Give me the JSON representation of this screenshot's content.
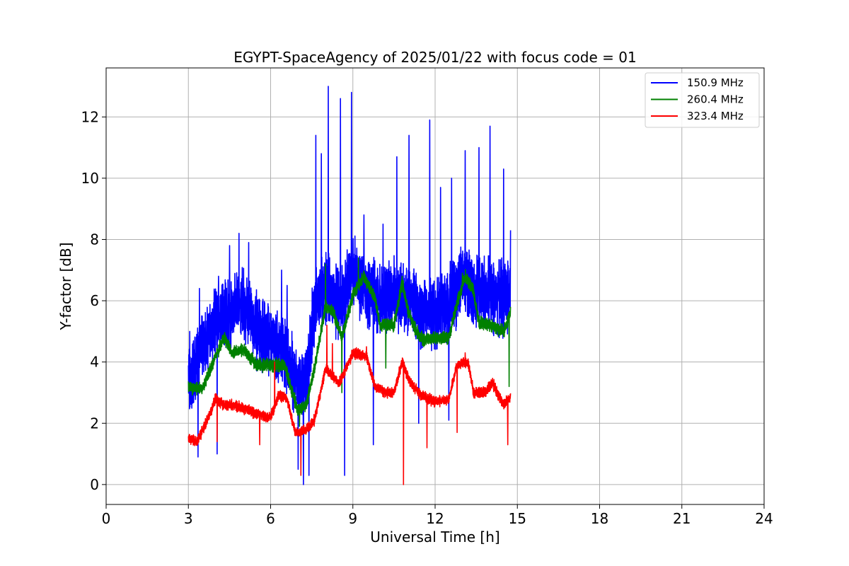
{
  "chart_data": {
    "type": "line",
    "title": "EGYPT-SpaceAgency of 2025/01/22 with focus code = 01",
    "xlabel": "Universal Time [h]",
    "ylabel": "Y-factor [dB]",
    "xlim": [
      0,
      24
    ],
    "ylim": [
      -0.65,
      13.6
    ],
    "xticks": [
      0,
      3,
      6,
      9,
      12,
      15,
      18,
      21,
      24
    ],
    "yticks": [
      0,
      2,
      4,
      6,
      8,
      10,
      12
    ],
    "grid": true,
    "legend_position": "top-right",
    "series": [
      {
        "name": "150.9 MHz",
        "color": "#0000ff",
        "trend": [
          [
            3.0,
            3.3
          ],
          [
            3.5,
            4.5
          ],
          [
            4.0,
            5.3
          ],
          [
            4.5,
            5.6
          ],
          [
            5.0,
            6.0
          ],
          [
            5.5,
            5.0
          ],
          [
            6.0,
            4.8
          ],
          [
            6.5,
            4.3
          ],
          [
            7.0,
            3.2
          ],
          [
            7.3,
            3.4
          ],
          [
            7.6,
            5.8
          ],
          [
            8.0,
            6.5
          ],
          [
            8.5,
            5.8
          ],
          [
            9.0,
            7.0
          ],
          [
            9.5,
            6.4
          ],
          [
            10.0,
            6.0
          ],
          [
            10.5,
            6.2
          ],
          [
            11.0,
            6.0
          ],
          [
            11.5,
            5.6
          ],
          [
            12.0,
            5.5
          ],
          [
            12.5,
            5.9
          ],
          [
            13.0,
            6.8
          ],
          [
            13.5,
            6.3
          ],
          [
            14.0,
            6.2
          ],
          [
            14.5,
            6.1
          ],
          [
            14.75,
            6.2
          ]
        ],
        "spread": 1.6,
        "peaks": [
          [
            3.05,
            5.0
          ],
          [
            3.4,
            6.4
          ],
          [
            4.1,
            6.8
          ],
          [
            4.5,
            7.8
          ],
          [
            4.85,
            8.2
          ],
          [
            5.2,
            7.9
          ],
          [
            6.4,
            7.0
          ],
          [
            6.6,
            6.5
          ],
          [
            7.65,
            11.4
          ],
          [
            7.85,
            10.8
          ],
          [
            8.1,
            13.0
          ],
          [
            8.55,
            12.6
          ],
          [
            8.95,
            12.8
          ],
          [
            9.4,
            8.8
          ],
          [
            10.1,
            8.5
          ],
          [
            10.6,
            10.7
          ],
          [
            11.05,
            11.4
          ],
          [
            11.8,
            11.9
          ],
          [
            12.2,
            9.7
          ],
          [
            12.6,
            10.0
          ],
          [
            13.1,
            10.9
          ],
          [
            13.6,
            11.0
          ],
          [
            14.0,
            11.7
          ],
          [
            14.5,
            10.3
          ],
          [
            14.75,
            8.3
          ]
        ],
        "dips": [
          [
            3.35,
            0.9
          ],
          [
            4.05,
            1.0
          ],
          [
            7.0,
            0.5
          ],
          [
            7.2,
            0.0
          ],
          [
            7.4,
            0.3
          ],
          [
            8.7,
            0.3
          ],
          [
            9.75,
            1.3
          ],
          [
            11.4,
            2.0
          ],
          [
            12.5,
            2.1
          ]
        ]
      },
      {
        "name": "260.4 MHz",
        "color": "#008000",
        "trend": [
          [
            3.0,
            3.2
          ],
          [
            3.5,
            3.1
          ],
          [
            4.0,
            4.2
          ],
          [
            4.3,
            4.8
          ],
          [
            4.6,
            4.3
          ],
          [
            5.0,
            4.4
          ],
          [
            5.5,
            3.9
          ],
          [
            6.0,
            3.9
          ],
          [
            6.5,
            3.9
          ],
          [
            6.8,
            3.0
          ],
          [
            7.0,
            2.4
          ],
          [
            7.3,
            2.6
          ],
          [
            7.6,
            3.8
          ],
          [
            8.0,
            5.8
          ],
          [
            8.3,
            5.6
          ],
          [
            8.6,
            4.8
          ],
          [
            9.0,
            6.2
          ],
          [
            9.4,
            6.8
          ],
          [
            9.8,
            6.1
          ],
          [
            10.0,
            5.2
          ],
          [
            10.5,
            5.2
          ],
          [
            10.8,
            6.6
          ],
          [
            11.0,
            5.7
          ],
          [
            11.3,
            5.0
          ],
          [
            11.6,
            4.7
          ],
          [
            12.0,
            4.8
          ],
          [
            12.5,
            4.8
          ],
          [
            12.8,
            5.9
          ],
          [
            13.1,
            6.8
          ],
          [
            13.4,
            6.3
          ],
          [
            13.6,
            5.3
          ],
          [
            14.0,
            5.2
          ],
          [
            14.5,
            5.0
          ],
          [
            14.75,
            5.6
          ]
        ],
        "spread": 0.3,
        "peaks": [
          [
            8.0,
            7.2
          ],
          [
            9.2,
            7.4
          ],
          [
            10.8,
            6.8
          ],
          [
            13.0,
            6.9
          ],
          [
            14.75,
            5.8
          ]
        ],
        "dips": [
          [
            7.05,
            1.9
          ],
          [
            8.6,
            3.0
          ],
          [
            10.2,
            3.8
          ],
          [
            14.7,
            3.2
          ]
        ]
      },
      {
        "name": "323.4 MHz",
        "color": "#ff0000",
        "trend": [
          [
            3.0,
            1.5
          ],
          [
            3.3,
            1.4
          ],
          [
            3.6,
            1.9
          ],
          [
            4.0,
            2.8
          ],
          [
            4.3,
            2.6
          ],
          [
            4.6,
            2.6
          ],
          [
            5.0,
            2.5
          ],
          [
            5.5,
            2.3
          ],
          [
            6.0,
            2.2
          ],
          [
            6.3,
            2.9
          ],
          [
            6.6,
            2.8
          ],
          [
            6.9,
            1.7
          ],
          [
            7.3,
            1.8
          ],
          [
            7.6,
            2.1
          ],
          [
            8.0,
            3.8
          ],
          [
            8.5,
            3.3
          ],
          [
            9.0,
            4.3
          ],
          [
            9.5,
            4.2
          ],
          [
            9.8,
            3.2
          ],
          [
            10.2,
            3.0
          ],
          [
            10.5,
            3.0
          ],
          [
            10.8,
            4.0
          ],
          [
            11.1,
            3.3
          ],
          [
            11.5,
            2.9
          ],
          [
            12.0,
            2.7
          ],
          [
            12.5,
            2.8
          ],
          [
            12.8,
            3.9
          ],
          [
            13.2,
            4.0
          ],
          [
            13.4,
            3.0
          ],
          [
            13.8,
            3.0
          ],
          [
            14.1,
            3.3
          ],
          [
            14.5,
            2.6
          ],
          [
            14.75,
            2.9
          ]
        ],
        "spread": 0.25,
        "peaks": [
          [
            6.15,
            4.0
          ],
          [
            8.05,
            5.2
          ],
          [
            8.25,
            4.6
          ],
          [
            9.5,
            4.5
          ],
          [
            10.85,
            4.4
          ],
          [
            13.1,
            4.3
          ]
        ],
        "dips": [
          [
            4.05,
            1.4
          ],
          [
            5.6,
            1.3
          ],
          [
            7.1,
            0.3
          ],
          [
            10.85,
            0.0
          ],
          [
            11.7,
            1.2
          ],
          [
            12.8,
            1.7
          ],
          [
            14.65,
            1.3
          ]
        ]
      }
    ]
  }
}
